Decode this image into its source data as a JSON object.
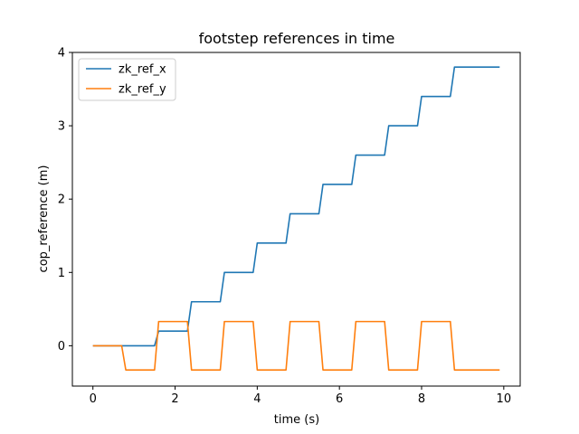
{
  "chart_data": {
    "type": "line",
    "title": "footstep references in time",
    "xlabel": "time (s)",
    "ylabel": "cop_reference (m)",
    "xlim": [
      -0.5,
      10.4
    ],
    "ylim": [
      -0.55,
      4.0
    ],
    "xticks": [
      0,
      2,
      4,
      6,
      8,
      10
    ],
    "yticks": [
      0,
      1,
      2,
      3,
      4
    ],
    "legend_position": "top-left",
    "grid": false,
    "series": [
      {
        "name": "zk_ref_x",
        "color": "#1f77b4",
        "x": [
          0,
          1.5,
          1.6,
          2.3,
          2.4,
          3.1,
          3.2,
          3.9,
          4.0,
          4.7,
          4.8,
          5.5,
          5.6,
          6.3,
          6.4,
          7.1,
          7.2,
          7.9,
          8.0,
          8.7,
          8.8,
          9.9
        ],
        "y": [
          0,
          0,
          0.2,
          0.2,
          0.6,
          0.6,
          1.0,
          1.0,
          1.4,
          1.4,
          1.8,
          1.8,
          2.2,
          2.2,
          2.6,
          2.6,
          3.0,
          3.0,
          3.4,
          3.4,
          3.8,
          3.8
        ]
      },
      {
        "name": "zk_ref_y",
        "color": "#ff7f0e",
        "x": [
          0,
          0.7,
          0.8,
          1.5,
          1.6,
          2.3,
          2.4,
          3.1,
          3.2,
          3.9,
          4.0,
          4.7,
          4.8,
          5.5,
          5.6,
          6.3,
          6.4,
          7.1,
          7.2,
          7.9,
          8.0,
          8.7,
          8.8,
          9.9
        ],
        "y": [
          0,
          0,
          -0.33,
          -0.33,
          0.33,
          0.33,
          -0.33,
          -0.33,
          0.33,
          0.33,
          -0.33,
          -0.33,
          0.33,
          0.33,
          -0.33,
          -0.33,
          0.33,
          0.33,
          -0.33,
          -0.33,
          0.33,
          0.33,
          -0.33,
          -0.33
        ]
      }
    ]
  }
}
